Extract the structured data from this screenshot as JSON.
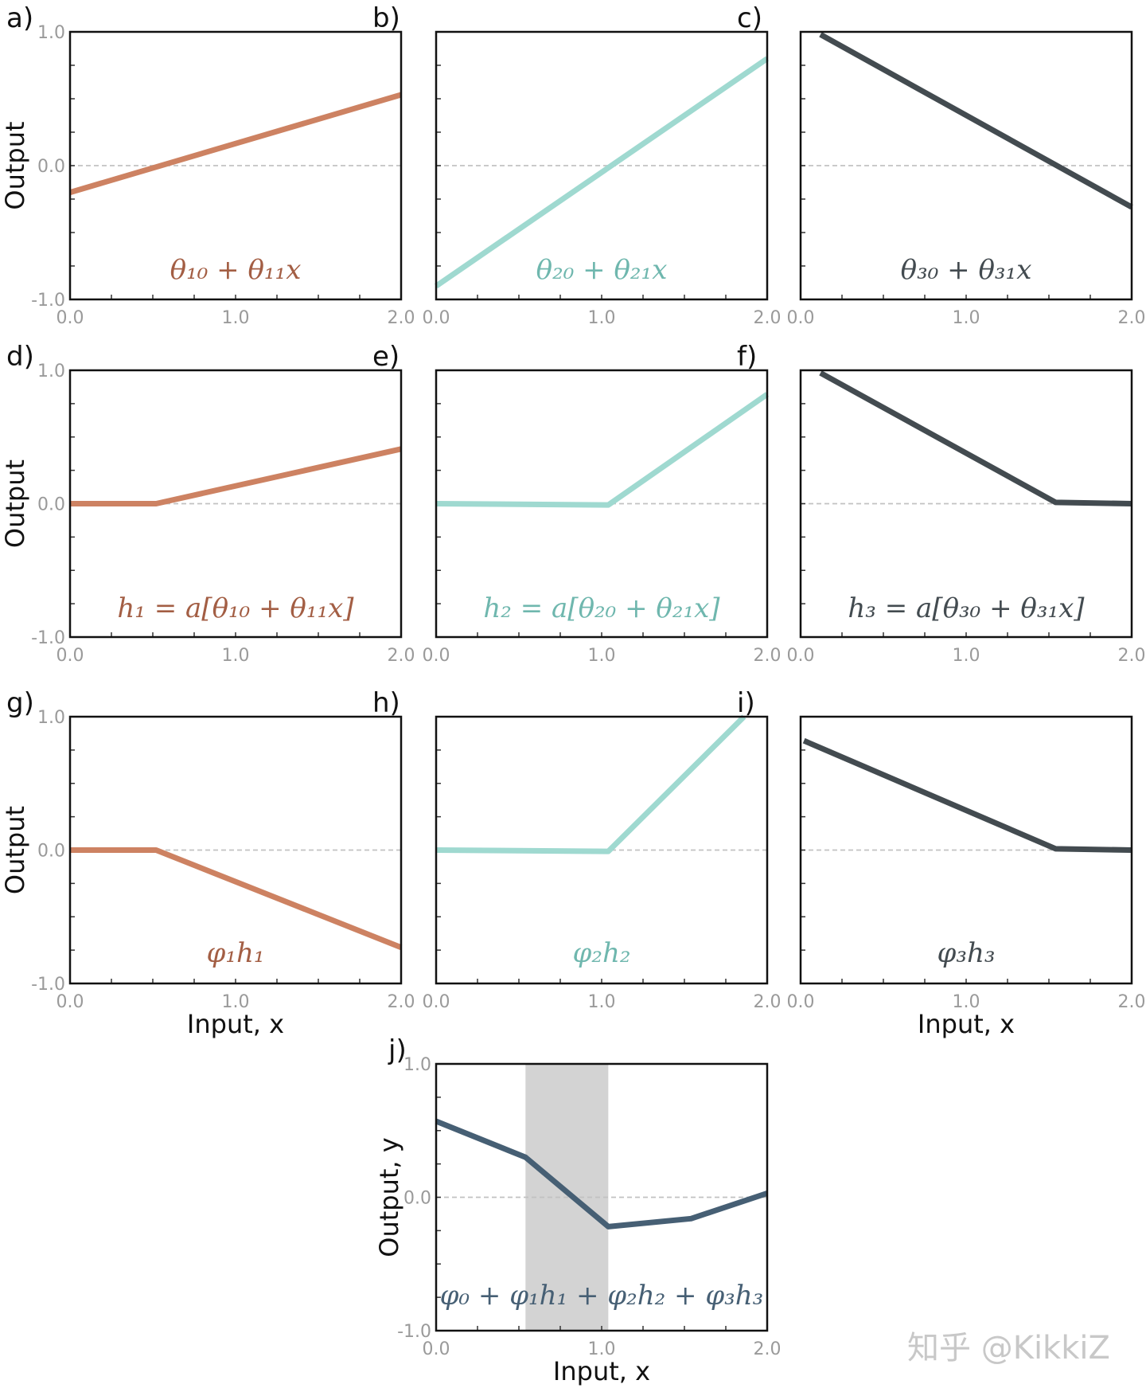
{
  "chart_data": [
    {
      "type": "line",
      "panel": "a)",
      "formula": "θ₁₀ + θ₁₁x",
      "color": "#cd8262",
      "x": [
        0,
        2
      ],
      "y": [
        -0.2,
        0.53
      ],
      "xlim": [
        0,
        2
      ],
      "ylim": [
        -1,
        1
      ],
      "xticks": [
        "0.0",
        "1.0",
        "2.0"
      ],
      "yticks": [
        "1.0",
        "0.0",
        "-1.0"
      ],
      "xlabel": "",
      "ylabel": "Output"
    },
    {
      "type": "line",
      "panel": "b)",
      "formula": "θ₂₀ + θ₂₁x",
      "color": "#9fd9d0",
      "x": [
        0,
        2
      ],
      "y": [
        -0.9,
        0.8
      ],
      "xlim": [
        0,
        2
      ],
      "ylim": [
        -1,
        1
      ],
      "xticks": [
        "0.0",
        "1.0",
        "2.0"
      ],
      "yticks": [],
      "xlabel": "",
      "ylabel": ""
    },
    {
      "type": "line",
      "panel": "c)",
      "formula": "θ₃₀ + θ₃₁x",
      "color": "#434b50",
      "x": [
        0.12,
        2
      ],
      "y": [
        0.98,
        -0.31
      ],
      "xlim": [
        0,
        2
      ],
      "ylim": [
        -1,
        1
      ],
      "xticks": [
        "0.0",
        "1.0",
        "2.0"
      ],
      "yticks": [],
      "xlabel": "",
      "ylabel": ""
    },
    {
      "type": "line",
      "panel": "d)",
      "formula": "h₁ = a[θ₁₀ + θ₁₁x]",
      "color": "#cd8262",
      "x": [
        0,
        0.52,
        2
      ],
      "y": [
        0,
        0,
        0.41
      ],
      "xlim": [
        0,
        2
      ],
      "ylim": [
        -1,
        1
      ],
      "xticks": [
        "0.0",
        "1.0",
        "2.0"
      ],
      "yticks": [
        "1.0",
        "0.0",
        "-1.0"
      ],
      "xlabel": "",
      "ylabel": "Output"
    },
    {
      "type": "line",
      "panel": "e)",
      "formula": "h₂ = a[θ₂₀ + θ₂₁x]",
      "color": "#9fd9d0",
      "x": [
        0,
        1.04,
        2
      ],
      "y": [
        0,
        -0.01,
        0.82
      ],
      "xlim": [
        0,
        2
      ],
      "ylim": [
        -1,
        1
      ],
      "xticks": [
        "0.0",
        "1.0",
        "2.0"
      ],
      "yticks": [],
      "xlabel": "",
      "ylabel": ""
    },
    {
      "type": "line",
      "panel": "f)",
      "formula": "h₃ = a[θ₃₀ + θ₃₁x]",
      "color": "#434b50",
      "x": [
        0.12,
        1.54,
        2
      ],
      "y": [
        0.98,
        0.01,
        0
      ],
      "xlim": [
        0,
        2
      ],
      "ylim": [
        -1,
        1
      ],
      "xticks": [
        "0.0",
        "1.0",
        "2.0"
      ],
      "yticks": [],
      "xlabel": "",
      "ylabel": ""
    },
    {
      "type": "line",
      "panel": "g)",
      "formula": "φ₁h₁",
      "color": "#cd8262",
      "x": [
        0,
        0.52,
        2
      ],
      "y": [
        0,
        0,
        -0.73
      ],
      "xlim": [
        0,
        2
      ],
      "ylim": [
        -1,
        1
      ],
      "xticks": [
        "0.0",
        "1.0",
        "2.0"
      ],
      "yticks": [
        "1.0",
        "0.0",
        "-1.0"
      ],
      "xlabel": "Input, x",
      "ylabel": "Output"
    },
    {
      "type": "line",
      "panel": "h)",
      "formula": "φ₂h₂",
      "color": "#9fd9d0",
      "x": [
        0,
        1.04,
        1.86
      ],
      "y": [
        0,
        -0.01,
        1.0
      ],
      "xlim": [
        0,
        2
      ],
      "ylim": [
        -1,
        1
      ],
      "xticks": [
        "0.0",
        "1.0",
        "2.0"
      ],
      "yticks": [],
      "xlabel": "",
      "ylabel": ""
    },
    {
      "type": "line",
      "panel": "i)",
      "formula": "φ₃h₃",
      "color": "#434b50",
      "x": [
        0.02,
        1.54,
        2
      ],
      "y": [
        0.82,
        0.01,
        0
      ],
      "xlim": [
        0,
        2
      ],
      "ylim": [
        -1,
        1
      ],
      "xticks": [
        "0.0",
        "1.0",
        "2.0"
      ],
      "yticks": [],
      "xlabel": "Input, x",
      "ylabel": ""
    },
    {
      "type": "line",
      "panel": "j)",
      "formula": "φ₀ + φ₁h₁ + φ₂h₂ + φ₃h₃",
      "color": "#465f74",
      "x": [
        0,
        0.54,
        1.04,
        1.54,
        2
      ],
      "y": [
        0.57,
        0.3,
        -0.22,
        -0.16,
        0.03
      ],
      "shaded_region": [
        0.54,
        1.04
      ],
      "xlim": [
        0,
        2
      ],
      "ylim": [
        -1,
        1
      ],
      "xticks": [
        "0.0",
        "1.0",
        "2.0"
      ],
      "yticks": [
        "1.0",
        "0.0",
        "-1.0"
      ],
      "xlabel": "Input, x",
      "ylabel": "Output, y"
    }
  ],
  "watermark": "知乎 @KikkiZ"
}
